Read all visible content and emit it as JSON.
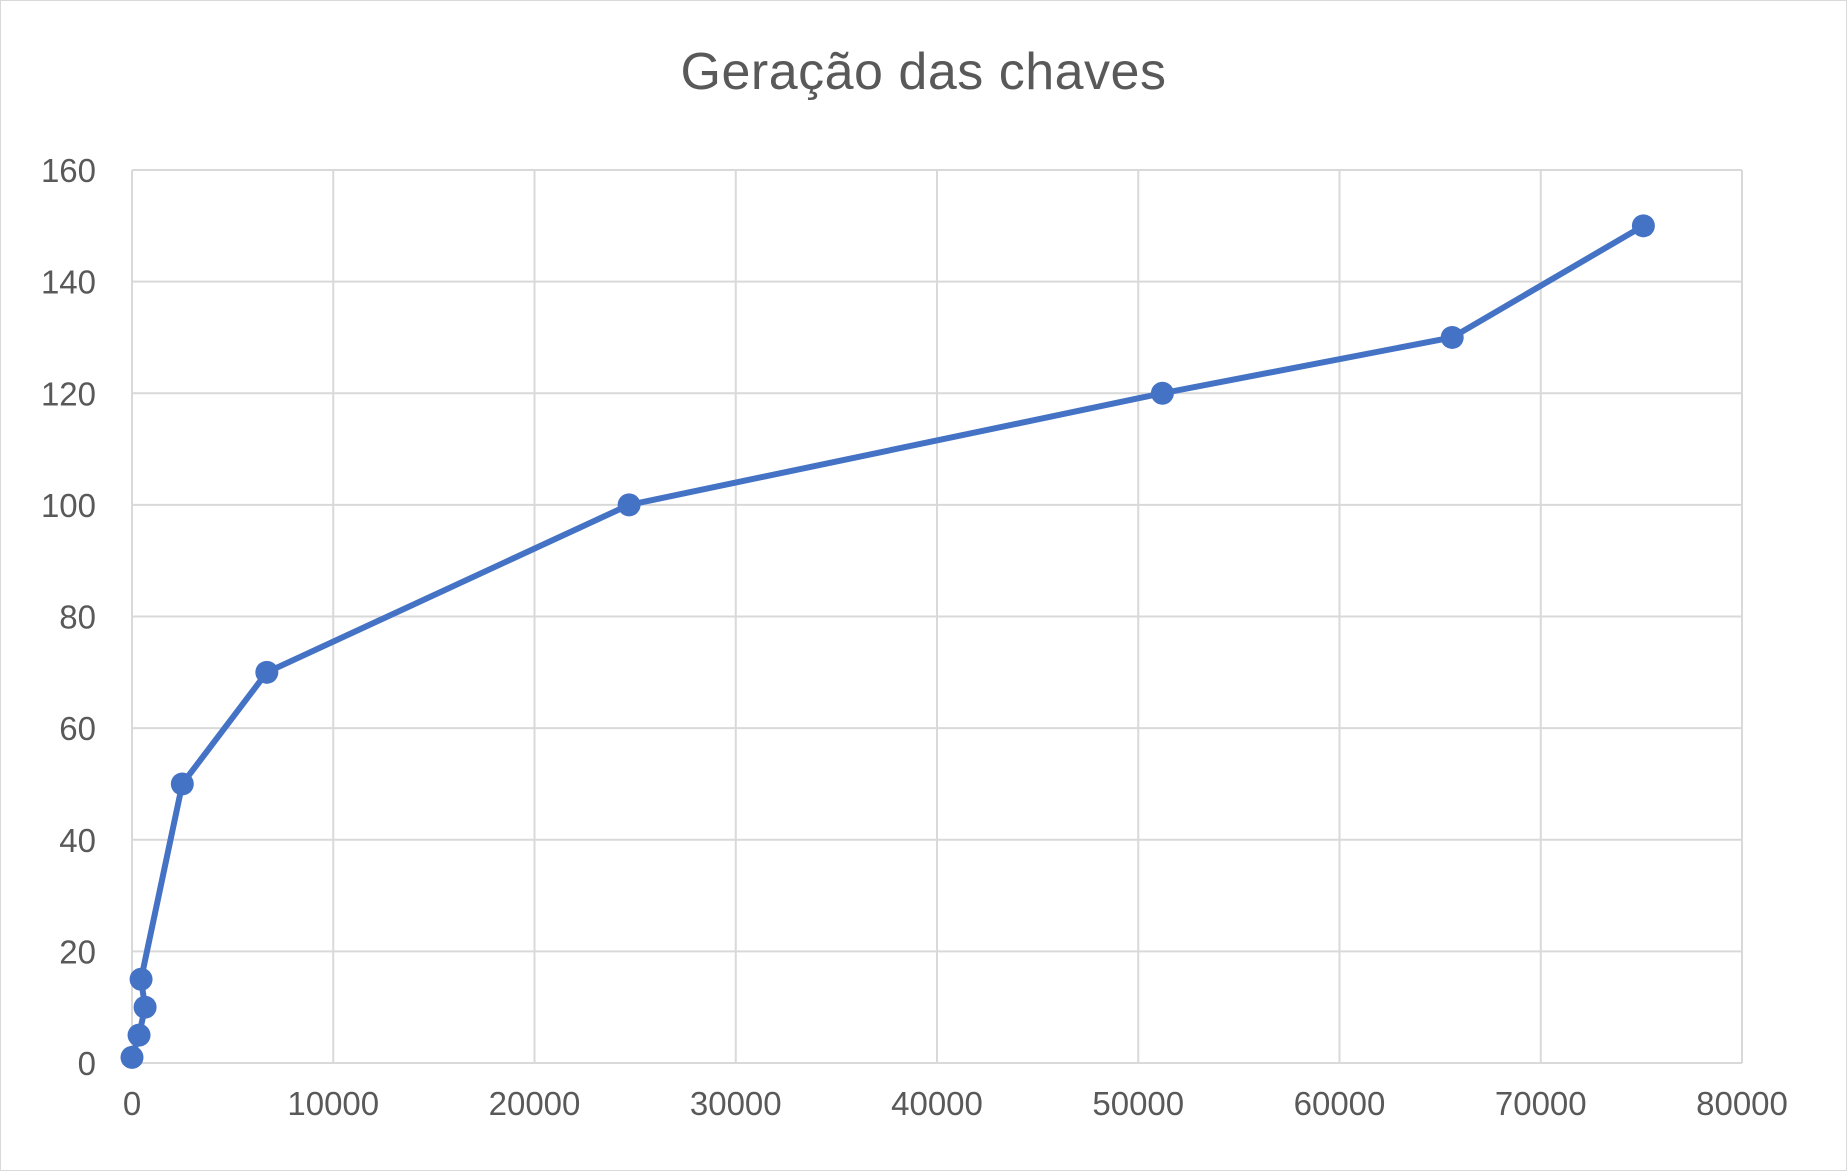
{
  "chart_data": {
    "type": "scatter",
    "mode": "lines+markers",
    "title": "Geração das chaves",
    "xlabel": "",
    "ylabel": "",
    "xlim": [
      0,
      80000
    ],
    "ylim": [
      0,
      160
    ],
    "x_ticks": [
      0,
      10000,
      20000,
      30000,
      40000,
      50000,
      60000,
      70000,
      80000
    ],
    "y_ticks": [
      0,
      20,
      40,
      60,
      80,
      100,
      120,
      140,
      160
    ],
    "grid": true,
    "legend": "none",
    "series": [
      {
        "color": "#4472c4",
        "points": [
          {
            "x": 0,
            "y": 1
          },
          {
            "x": 350,
            "y": 5
          },
          {
            "x": 650,
            "y": 10
          },
          {
            "x": 450,
            "y": 15
          },
          {
            "x": 2500,
            "y": 50
          },
          {
            "x": 6700,
            "y": 70
          },
          {
            "x": 24700,
            "y": 100
          },
          {
            "x": 51200,
            "y": 120
          },
          {
            "x": 65600,
            "y": 130
          },
          {
            "x": 75100,
            "y": 150
          }
        ]
      }
    ]
  }
}
